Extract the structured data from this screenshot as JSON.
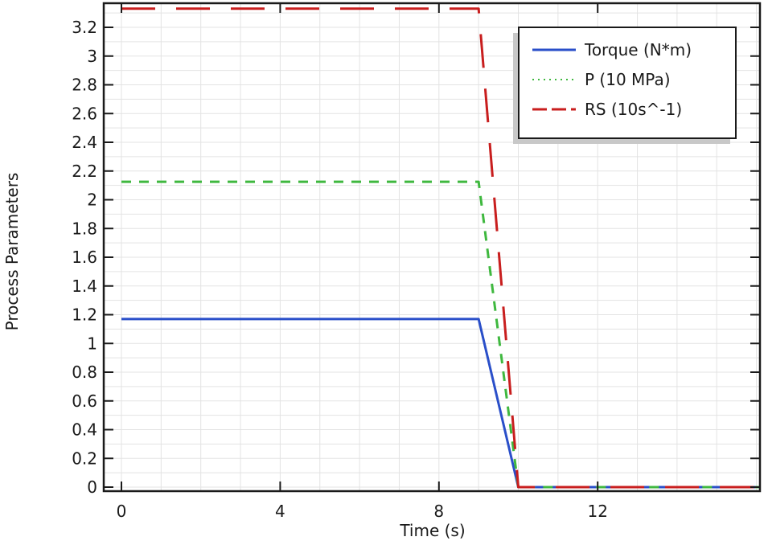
{
  "chart_data": {
    "type": "line",
    "title": "",
    "xlabel": "Time (s)",
    "ylabel": "Process Parameters",
    "xlim": [
      -0.45,
      16.1
    ],
    "ylim": [
      -0.03,
      3.37
    ],
    "xticks": [
      0,
      4,
      8,
      12
    ],
    "xtick_labels": [
      "0",
      "4",
      "8",
      "12"
    ],
    "yticks": [
      0,
      0.2,
      0.4,
      0.6,
      0.8,
      1,
      1.2,
      1.4,
      1.6,
      1.8,
      2,
      2.2,
      2.4,
      2.6,
      2.8,
      3,
      3.2
    ],
    "ytick_labels": [
      "0",
      "0.2",
      "0.4",
      "0.6",
      "0.8",
      "1",
      "1.2",
      "1.4",
      "1.6",
      "1.8",
      "2",
      "2.2",
      "2.4",
      "2.6",
      "2.8",
      "3",
      "3.2"
    ],
    "grid": true,
    "legend_position": "upper right",
    "series": [
      {
        "name": "Torque (N*m)",
        "color": "#2a4fc9",
        "style": "solid",
        "x": [
          0,
          9,
          10,
          16.1
        ],
        "y": [
          1.17,
          1.17,
          0,
          0
        ]
      },
      {
        "name": "P (10 MPa)",
        "color": "#3fb83f",
        "style": "dotted",
        "x": [
          0,
          9,
          10,
          16.1
        ],
        "y": [
          2.125,
          2.125,
          0,
          0
        ]
      },
      {
        "name": "RS (10s^-1)",
        "color": "#c81e1e",
        "style": "dashed",
        "x": [
          0,
          9,
          10,
          16.1
        ],
        "y": [
          3.33,
          3.33,
          0,
          0
        ]
      }
    ]
  }
}
